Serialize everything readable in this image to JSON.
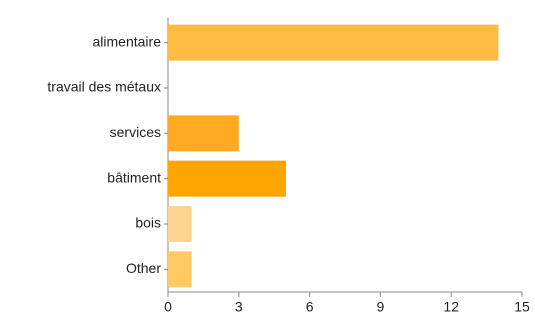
{
  "chart_data": {
    "type": "bar",
    "orientation": "horizontal",
    "categories": [
      "alimentaire",
      "travail des métaux",
      "services",
      "bâtiment",
      "bois",
      "Other"
    ],
    "values": [
      14,
      0,
      3,
      5,
      1,
      1
    ],
    "colors": [
      "#ffbb44",
      "#ffbb44",
      "#ffaa22",
      "#ffa500",
      "#ffd391",
      "#ffc964"
    ],
    "xlim": [
      0,
      15
    ],
    "xticks": [
      0,
      3,
      6,
      9,
      12,
      15
    ],
    "grid": false
  }
}
